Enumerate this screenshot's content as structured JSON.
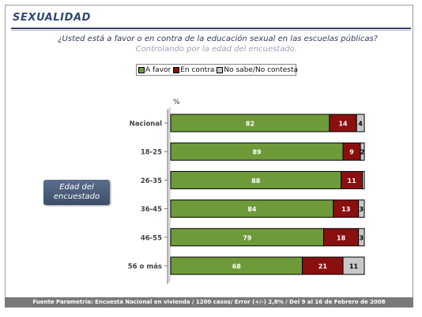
{
  "header": {
    "title": "SEXUALIDAD"
  },
  "question": "¿Usted está a favor o en contra de la educación sexual en las escuelas públicas?",
  "subtitle": "Controlando por la edad del encuestado.",
  "badge": {
    "line1": "Edad del",
    "line2": "encuestado"
  },
  "footer": "Fuente Parametría: Encuesta Nacional en vivienda / 1200 casos/ Error (+/-) 2,8% / Del 9 al 16 de Febrero de 2008",
  "chart_data": {
    "type": "bar",
    "orientation": "horizontal",
    "stacked": true,
    "unit_label": "%",
    "categories": [
      "Nacional",
      "18-25",
      "26-35",
      "36-45",
      "46-55",
      "56 o más"
    ],
    "series": [
      {
        "name": "A favor",
        "color": "#6f9a3a",
        "values": [
          82,
          89,
          88,
          84,
          79,
          68
        ],
        "labels": [
          "82",
          "89",
          "88",
          "84",
          "79",
          "68"
        ]
      },
      {
        "name": "En contra",
        "color": "#8a1010",
        "values": [
          14,
          9,
          11,
          13,
          18,
          21
        ],
        "labels": [
          "14",
          "9",
          "11",
          "13",
          "18",
          "21"
        ]
      },
      {
        "name": "No sabe/No contesta",
        "color": "#c8c8c8",
        "values": [
          4,
          2,
          1,
          3,
          3,
          11
        ],
        "labels": [
          "4",
          "2",
          "",
          "3",
          "3",
          "11"
        ]
      }
    ],
    "xlim": [
      0,
      100
    ],
    "legend_position": "top"
  }
}
